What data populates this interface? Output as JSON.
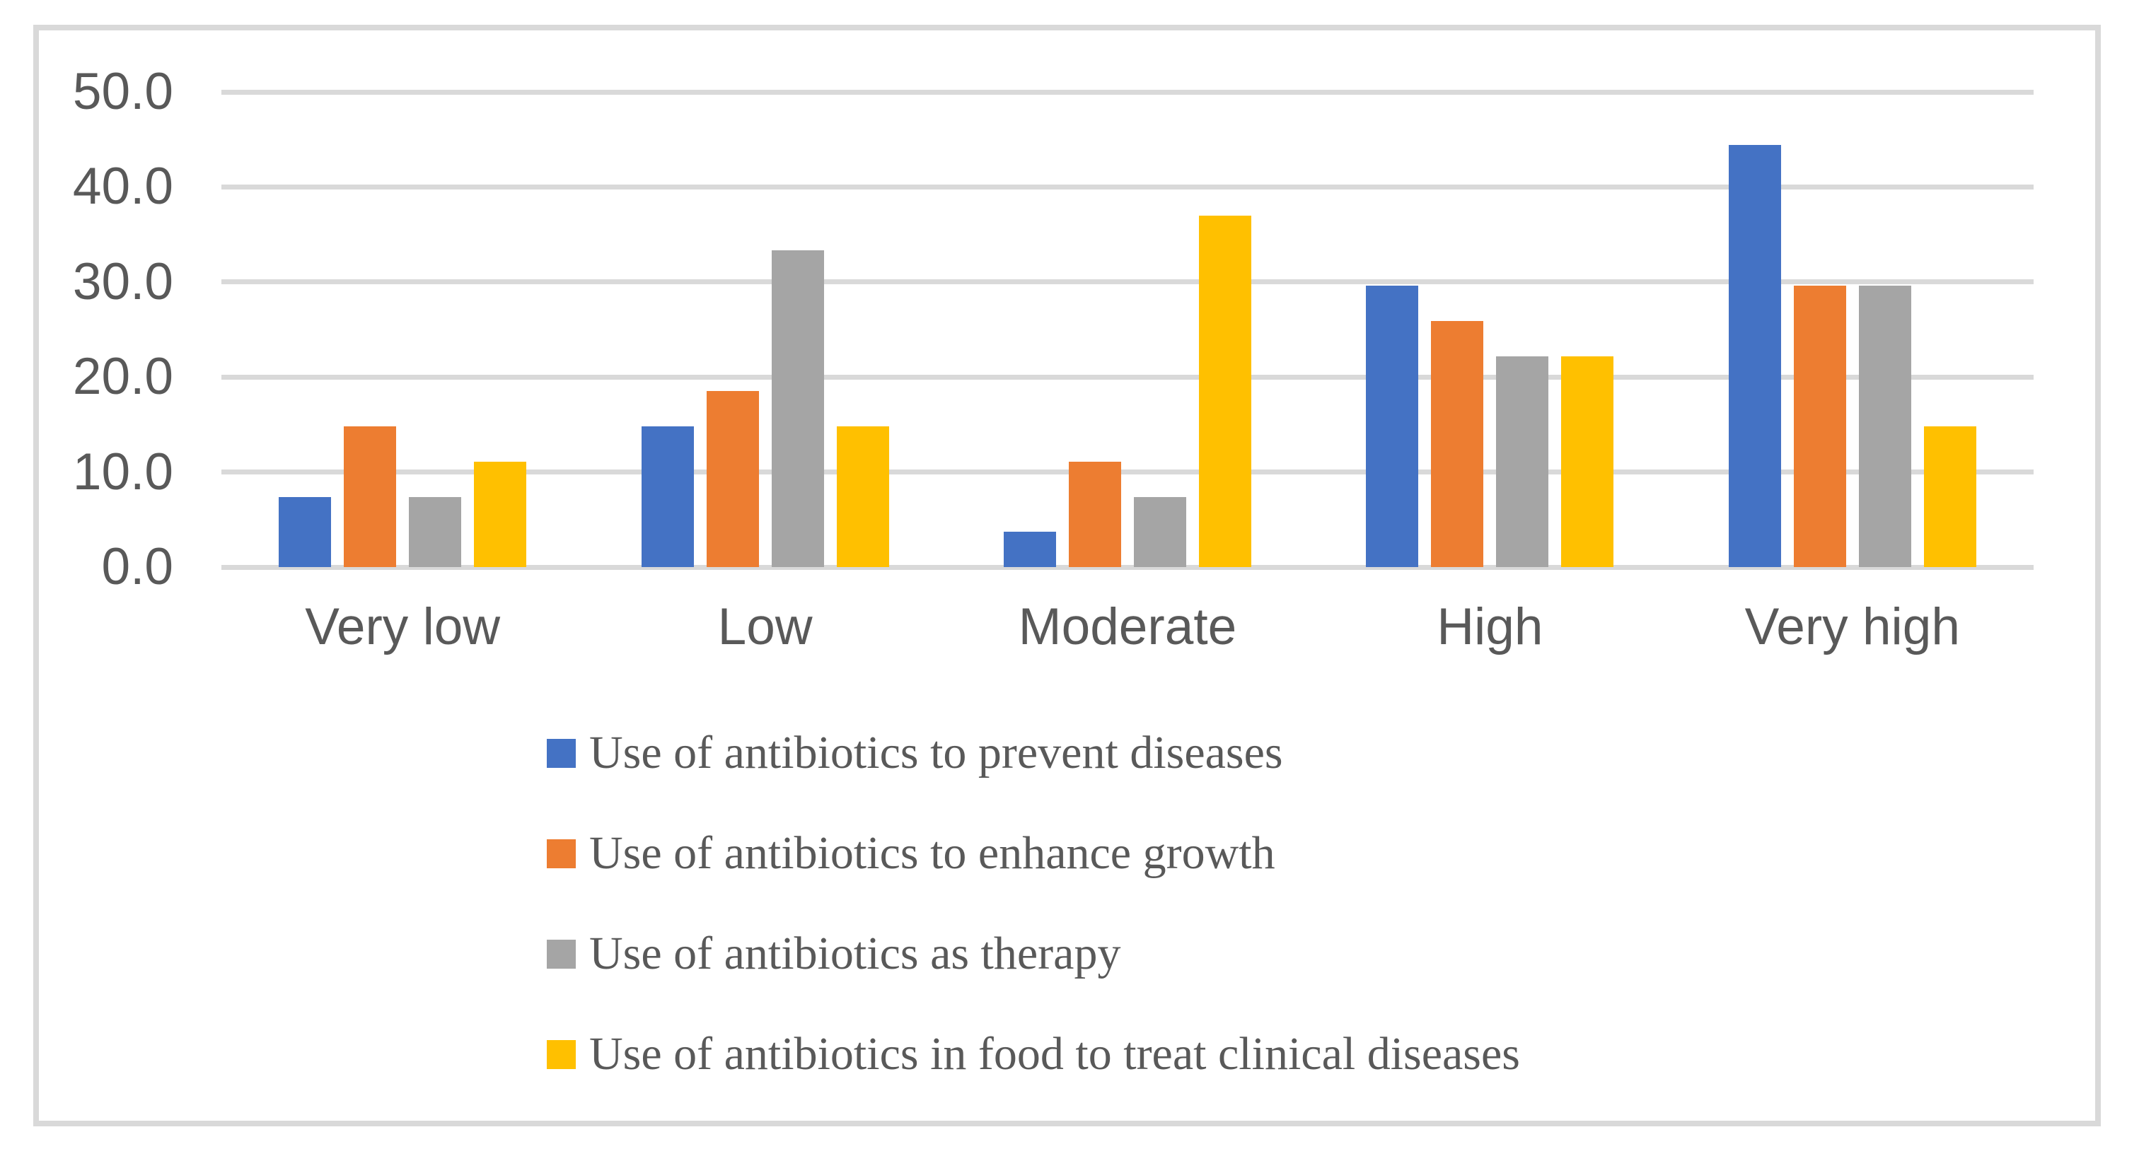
{
  "chart_data": {
    "type": "bar",
    "title": "",
    "xlabel": "",
    "ylabel": "",
    "categories": [
      "Very low",
      "Low",
      "Moderate",
      "High",
      "Very high"
    ],
    "series": [
      {
        "name": "Use of antibiotics to prevent diseases",
        "color": "#4472C4",
        "values": [
          7.4,
          14.8,
          3.7,
          29.6,
          44.4
        ]
      },
      {
        "name": "Use of antibiotics to enhance growth",
        "color": "#ED7D31",
        "values": [
          14.8,
          18.5,
          11.1,
          25.9,
          29.6
        ]
      },
      {
        "name": "Use of antibiotics as therapy",
        "color": "#A5A5A5",
        "values": [
          7.4,
          33.3,
          7.4,
          22.2,
          29.6
        ]
      },
      {
        "name": "Use of antibiotics in food to treat clinical diseases",
        "color": "#FFC000",
        "values": [
          11.1,
          14.8,
          37.0,
          22.2,
          14.8
        ]
      }
    ],
    "ylim": [
      0,
      50
    ],
    "ytick_step": 10,
    "yticks": [
      "50.0",
      "40.0",
      "30.0",
      "20.0",
      "10.0",
      "0.0"
    ],
    "grid": true,
    "legend_position": "bottom-left",
    "style": {
      "gridline_color": "#D9D9D9",
      "frame_border_color": "#D9D9D9",
      "text_color": "#595959",
      "background_color": "#FFFFFF"
    }
  }
}
